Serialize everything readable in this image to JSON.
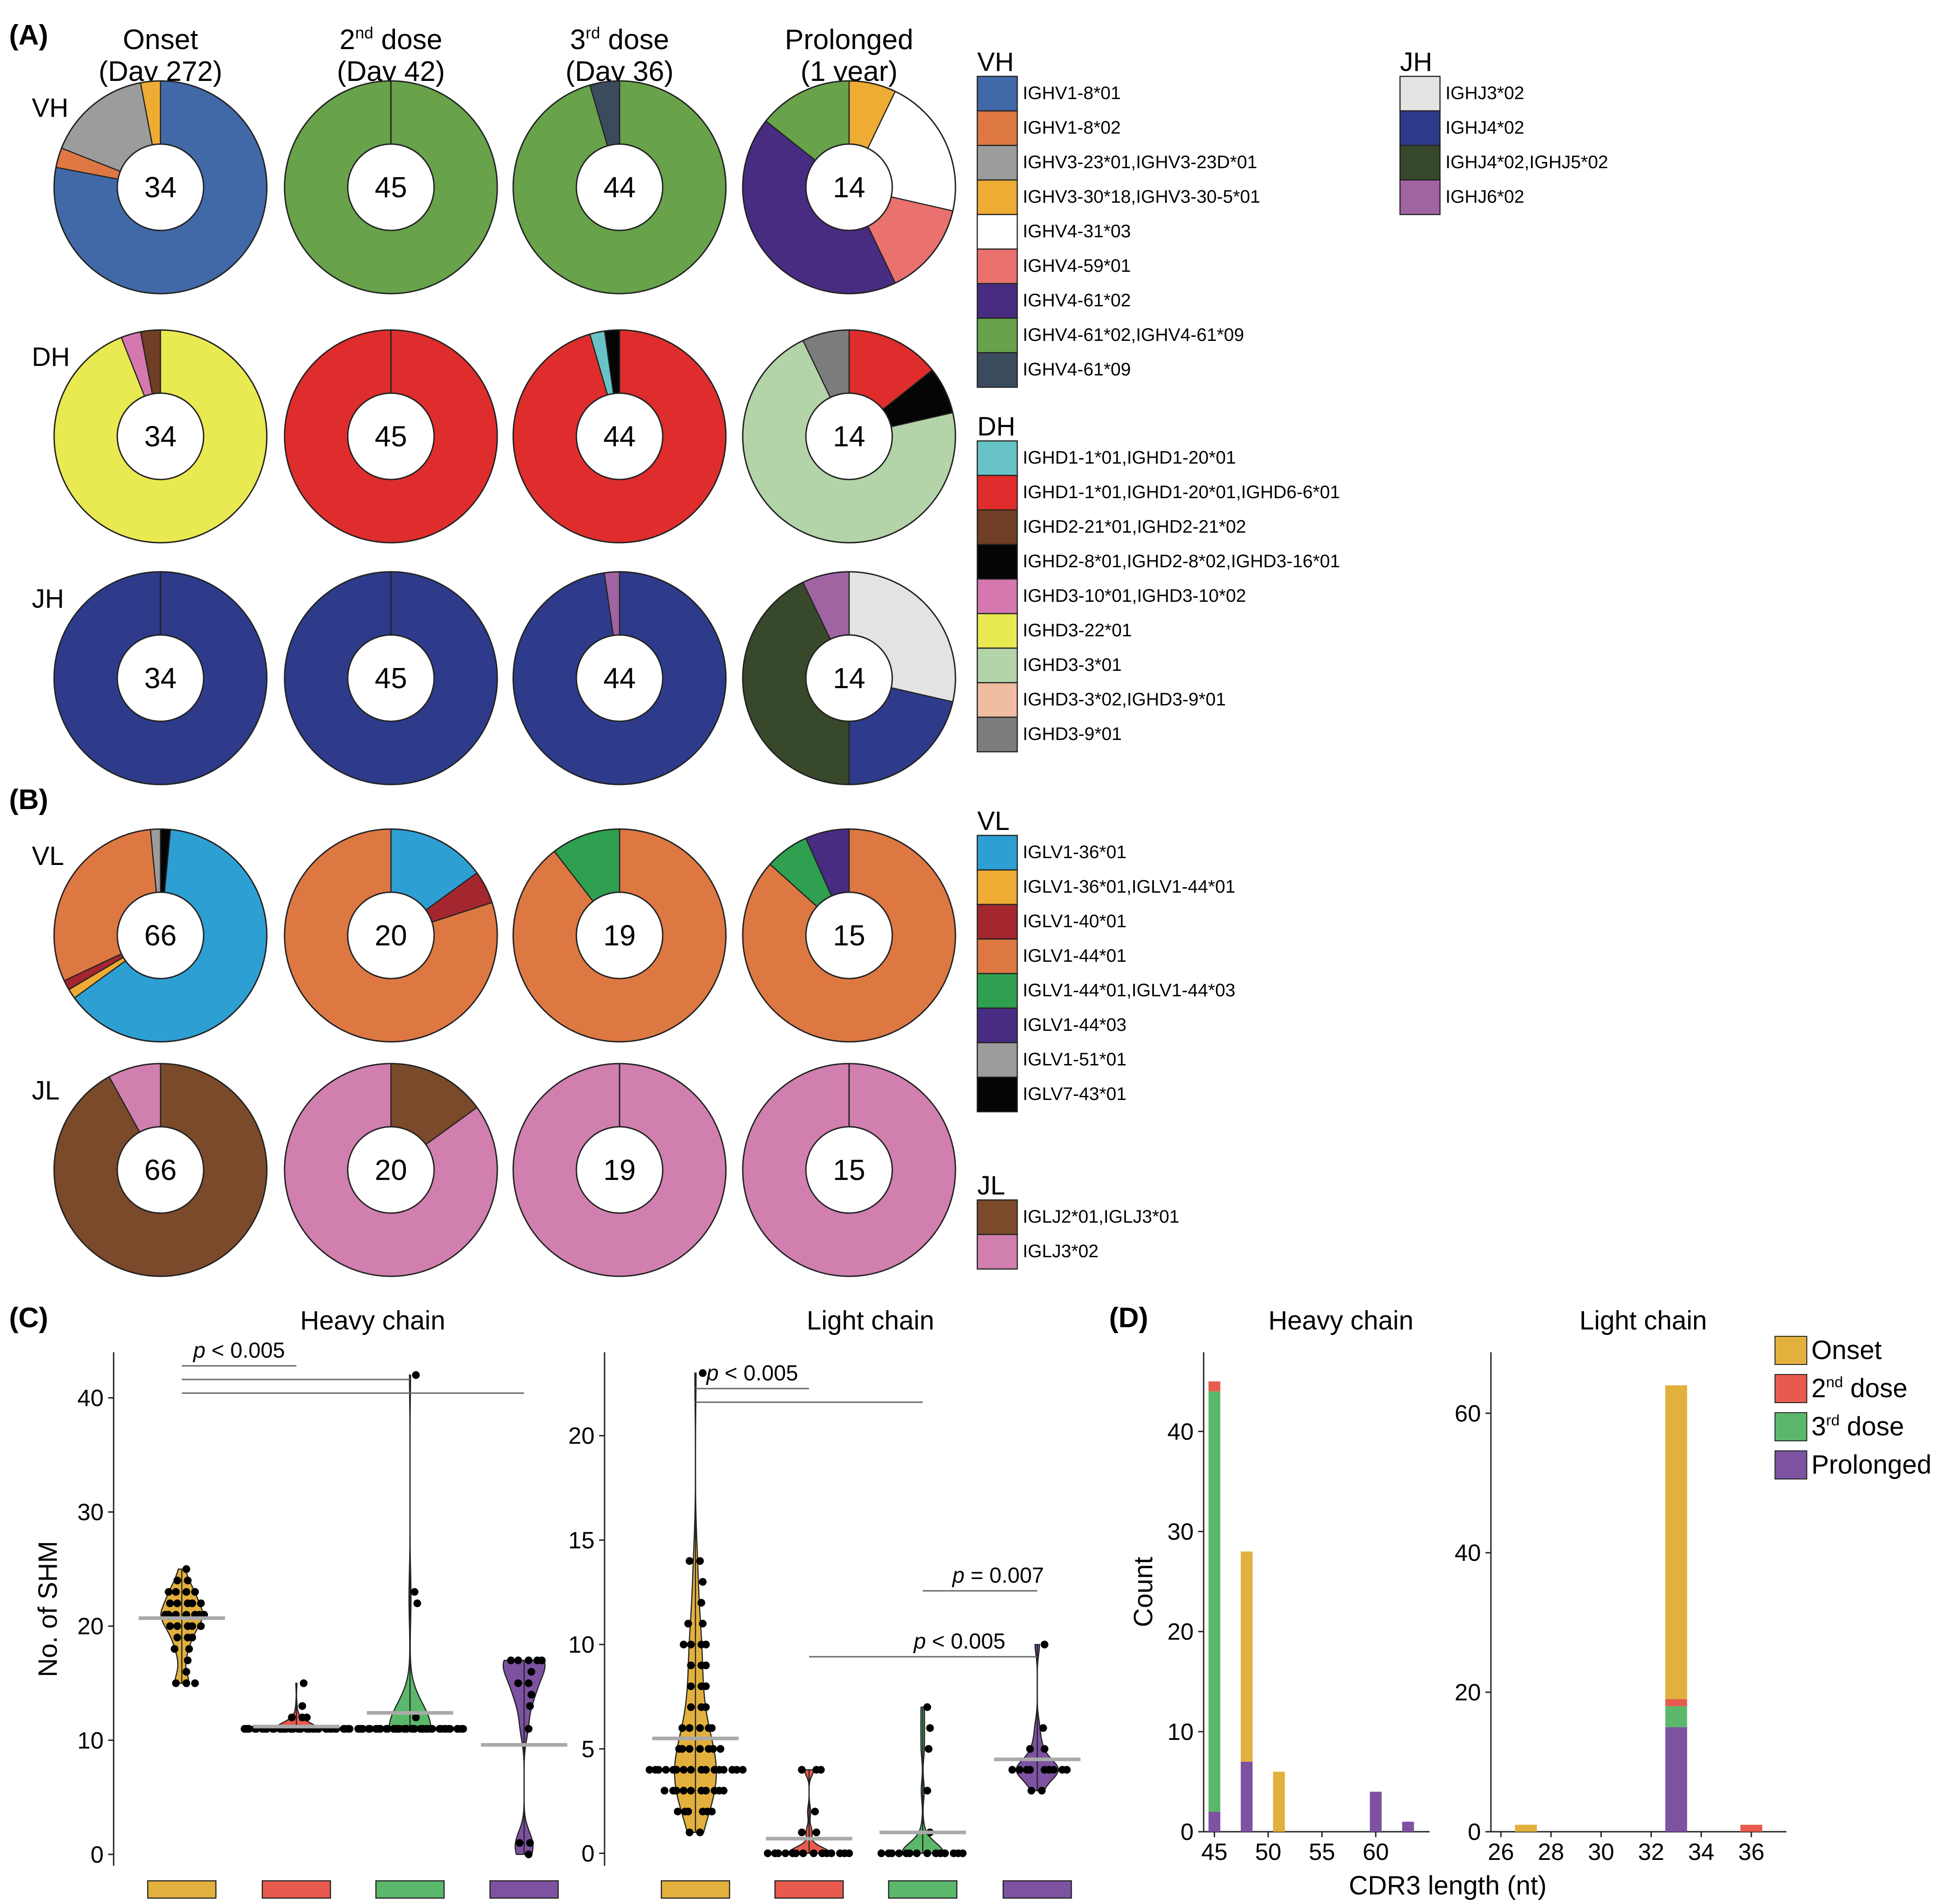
{
  "panels": {
    "a": "(A)",
    "b": "(B)",
    "c": "(C)",
    "d": "(D)"
  },
  "columns": [
    {
      "line1": "Onset",
      "line2": "(Day 272)"
    },
    {
      "line1": "2",
      "sup": "nd",
      "line1b": " dose",
      "line2": "(Day 42)"
    },
    {
      "line1": "3",
      "sup": "rd",
      "line1b": " dose",
      "line2": "(Day 36)"
    },
    {
      "line1": "Prolonged",
      "line2": "(1 year)"
    }
  ],
  "colors": {
    "IGHV1-8*01": "#4169a8",
    "IGHV1-8*02": "#dd7843",
    "IGHV3-23*01,IGHV3-23D*01": "#9c9c9c",
    "IGHV3-30*18,IGHV3-30-5*01": "#eeac34",
    "IGHV4-31*03": "#ffffff",
    "IGHV4-59*01": "#e9716e",
    "IGHV4-61*02": "#472c82",
    "IGHV4-61*02,IGHV4-61*09": "#68a24a",
    "IGHV4-61*09": "#3b4b5e",
    "IGHD1-1*01,IGHD1-20*01": "#68c3c6",
    "IGHD1-1*01,IGHD1-20*01,IGHD6-6*01": "#de2d2c",
    "IGHD2-21*01,IGHD2-21*02": "#6f3e24",
    "IGHD2-8*01,IGHD2-8*02,IGHD3-16*01": "#050505",
    "IGHD3-10*01,IGHD3-10*02": "#d678b0",
    "IGHD3-22*01": "#e9e951",
    "IGHD3-3*01": "#b3d3a9",
    "IGHD3-3*02,IGHD3-9*01": "#efbda2",
    "IGHD3-9*01": "#7c7c7c",
    "IGHJ3*02": "#e3e3e1",
    "IGHJ4*02": "#2e3b8a",
    "IGHJ4*02,IGHJ5*02": "#38482b",
    "IGHJ6*02": "#a064a2",
    "IGLV1-36*01": "#2e9fd2",
    "IGLV1-36*01,IGLV1-44*01": "#eeac34",
    "IGLV1-40*01": "#a4262e",
    "IGLV1-44*01": "#dd7843",
    "IGLV1-44*01,IGLV1-44*03": "#2ea04f",
    "IGLV1-44*03": "#472c82",
    "IGLV1-51*01": "#9c9c9c",
    "IGLV7-43*01": "#050505",
    "IGLJ2*01,IGLJ3*01": "#7a4a2a",
    "IGLJ3*02": "#d07fae",
    "Onset": "#e2b03c",
    "2nd dose": "#e85a4e",
    "3rd dose": "#5bb86a",
    "Prolonged": "#7d52a1"
  },
  "donut_rows": [
    {
      "label": "VH",
      "donuts": [
        {
          "n": "34",
          "slices": [
            [
              "IGHV1-8*01",
              0.78
            ],
            [
              "IGHV1-8*02",
              0.03
            ],
            [
              "IGHV3-23*01,IGHV3-23D*01",
              0.16
            ],
            [
              "IGHV3-30*18,IGHV3-30-5*01",
              0.03
            ]
          ]
        },
        {
          "n": "45",
          "slices": [
            [
              "IGHV4-61*02,IGHV4-61*09",
              1.0
            ]
          ]
        },
        {
          "n": "44",
          "slices": [
            [
              "IGHV4-61*02,IGHV4-61*09",
              0.955
            ],
            [
              "IGHV4-61*09",
              0.045
            ]
          ]
        },
        {
          "n": "14",
          "slices": [
            [
              "IGHV3-30*18,IGHV3-30-5*01",
              0.0714
            ],
            [
              "IGHV4-31*03",
              0.2143
            ],
            [
              "IGHV4-59*01",
              0.1429
            ],
            [
              "IGHV4-61*02",
              0.4286
            ],
            [
              "IGHV4-61*02,IGHV4-61*09",
              0.1429
            ]
          ]
        }
      ]
    },
    {
      "label": "DH",
      "donuts": [
        {
          "n": "34",
          "slices": [
            [
              "IGHD3-22*01",
              0.94
            ],
            [
              "IGHD3-10*01,IGHD3-10*02",
              0.03
            ],
            [
              "IGHD2-21*01,IGHD2-21*02",
              0.03
            ]
          ]
        },
        {
          "n": "45",
          "slices": [
            [
              "IGHD1-1*01,IGHD1-20*01,IGHD6-6*01",
              1.0
            ]
          ]
        },
        {
          "n": "44",
          "slices": [
            [
              "IGHD1-1*01,IGHD1-20*01,IGHD6-6*01",
              0.955
            ],
            [
              "IGHD1-1*01,IGHD1-20*01",
              0.0225
            ],
            [
              "IGHD2-8*01,IGHD2-8*02,IGHD3-16*01",
              0.0225
            ]
          ]
        },
        {
          "n": "14",
          "slices": [
            [
              "IGHD1-1*01,IGHD1-20*01,IGHD6-6*01",
              0.1429
            ],
            [
              "IGHD2-8*01,IGHD2-8*02,IGHD3-16*01",
              0.0714
            ],
            [
              "IGHD3-3*01",
              0.7143
            ],
            [
              "IGHD3-9*01",
              0.0714
            ]
          ]
        }
      ]
    },
    {
      "label": "JH",
      "donuts": [
        {
          "n": "34",
          "slices": [
            [
              "IGHJ4*02",
              1.0
            ]
          ]
        },
        {
          "n": "45",
          "slices": [
            [
              "IGHJ4*02",
              1.0
            ]
          ]
        },
        {
          "n": "44",
          "slices": [
            [
              "IGHJ4*02",
              0.977
            ],
            [
              "IGHJ6*02",
              0.023
            ]
          ]
        },
        {
          "n": "14",
          "slices": [
            [
              "IGHJ3*02",
              0.2857
            ],
            [
              "IGHJ4*02",
              0.2143
            ],
            [
              "IGHJ4*02,IGHJ5*02",
              0.4286
            ],
            [
              "IGHJ6*02",
              0.0714
            ]
          ]
        }
      ]
    },
    {
      "label": "VL",
      "donuts": [
        {
          "n": "66",
          "slices": [
            [
              "IGLV7-43*01",
              0.015
            ],
            [
              "IGLV1-36*01",
              0.635
            ],
            [
              "IGLV1-36*01,IGLV1-44*01",
              0.015
            ],
            [
              "IGLV1-40*01",
              0.015
            ],
            [
              "IGLV1-44*01",
              0.305
            ],
            [
              "IGLV1-51*01",
              0.015
            ]
          ]
        },
        {
          "n": "20",
          "slices": [
            [
              "IGLV1-36*01",
              0.15
            ],
            [
              "IGLV1-40*01",
              0.05
            ],
            [
              "IGLV1-44*01",
              0.8
            ]
          ]
        },
        {
          "n": "19",
          "slices": [
            [
              "IGLV1-44*01",
              0.895
            ],
            [
              "IGLV1-44*01,IGLV1-44*03",
              0.105
            ]
          ]
        },
        {
          "n": "15",
          "slices": [
            [
              "IGLV1-44*01",
              0.8667
            ],
            [
              "IGLV1-44*01,IGLV1-44*03",
              0.0667
            ],
            [
              "IGLV1-44*03",
              0.0667
            ]
          ]
        }
      ]
    },
    {
      "label": "JL",
      "donuts": [
        {
          "n": "66",
          "slices": [
            [
              "IGLJ2*01,IGLJ3*01",
              0.92
            ],
            [
              "IGLJ3*02",
              0.08
            ]
          ]
        },
        {
          "n": "20",
          "slices": [
            [
              "IGLJ2*01,IGLJ3*01",
              0.15
            ],
            [
              "IGLJ3*02",
              0.85
            ]
          ]
        },
        {
          "n": "19",
          "slices": [
            [
              "IGLJ3*02",
              1.0
            ]
          ]
        },
        {
          "n": "15",
          "slices": [
            [
              "IGLJ3*02",
              1.0
            ]
          ]
        }
      ]
    }
  ],
  "legends": [
    {
      "title": "VH",
      "items": [
        "IGHV1-8*01",
        "IGHV1-8*02",
        "IGHV3-23*01,IGHV3-23D*01",
        "IGHV3-30*18,IGHV3-30-5*01",
        "IGHV4-31*03",
        "IGHV4-59*01",
        "IGHV4-61*02",
        "IGHV4-61*02,IGHV4-61*09",
        "IGHV4-61*09"
      ]
    },
    {
      "title": "JH",
      "items": [
        "IGHJ3*02",
        "IGHJ4*02",
        "IGHJ4*02,IGHJ5*02",
        "IGHJ6*02"
      ]
    },
    {
      "title": "DH",
      "items": [
        "IGHD1-1*01,IGHD1-20*01",
        "IGHD1-1*01,IGHD1-20*01,IGHD6-6*01",
        "IGHD2-21*01,IGHD2-21*02",
        "IGHD2-8*01,IGHD2-8*02,IGHD3-16*01",
        "IGHD3-10*01,IGHD3-10*02",
        "IGHD3-22*01",
        "IGHD3-3*01",
        "IGHD3-3*02,IGHD3-9*01",
        "IGHD3-9*01"
      ]
    },
    {
      "title": "VL",
      "items": [
        "IGLV1-36*01",
        "IGLV1-36*01,IGLV1-44*01",
        "IGLV1-40*01",
        "IGLV1-44*01",
        "IGLV1-44*01,IGLV1-44*03",
        "IGLV1-44*03",
        "IGLV1-51*01",
        "IGLV7-43*01"
      ]
    },
    {
      "title": "JL",
      "items": [
        "IGLJ2*01,IGLJ3*01",
        "IGLJ3*02"
      ]
    }
  ],
  "chart_data": [
    {
      "type": "violin",
      "title": "Heavy chain",
      "ylabel": "No. of SHM",
      "ylim": [
        -1,
        44
      ],
      "yticks": [
        0,
        10,
        20,
        30,
        40
      ],
      "groups": [
        "Onset",
        "2nd dose",
        "3rd dose",
        "Prolonged"
      ],
      "means": [
        20.7,
        11.2,
        12.4,
        9.6
      ],
      "points": [
        [
          15,
          15,
          15,
          16,
          17,
          18,
          18,
          19,
          19,
          19,
          20,
          20,
          20,
          20,
          20,
          21,
          21,
          21,
          21,
          21,
          21,
          21,
          22,
          22,
          22,
          22,
          22,
          23,
          23,
          23,
          23,
          24,
          24,
          25
        ],
        [
          11,
          11,
          11,
          11,
          11,
          11,
          11,
          11,
          11,
          11,
          11,
          11,
          11,
          11,
          11,
          11,
          11,
          11,
          11,
          11,
          11,
          11,
          11,
          11,
          11,
          11,
          11,
          11,
          11,
          11,
          11,
          11,
          11,
          11,
          11,
          11,
          11,
          11,
          11,
          11,
          12,
          12,
          12,
          13,
          15
        ],
        [
          11,
          11,
          11,
          11,
          11,
          11,
          11,
          11,
          11,
          11,
          11,
          11,
          11,
          11,
          11,
          11,
          11,
          11,
          11,
          11,
          11,
          11,
          11,
          11,
          11,
          11,
          11,
          11,
          11,
          11,
          11,
          11,
          11,
          11,
          11,
          11,
          11,
          11,
          11,
          11,
          12,
          22,
          23,
          42
        ],
        [
          0,
          1,
          1,
          11,
          13,
          14,
          15,
          15,
          16,
          17,
          17,
          17,
          17,
          17
        ]
      ],
      "comparisons": [
        {
          "from": 0,
          "to": 1,
          "label": "p < 0.005"
        },
        {
          "from": 0,
          "to": 2,
          "label": ""
        },
        {
          "from": 0,
          "to": 3,
          "label": ""
        }
      ]
    },
    {
      "type": "violin",
      "title": "Light chain",
      "ylim": [
        -0.6,
        24
      ],
      "yticks": [
        0,
        5,
        10,
        15,
        20
      ],
      "groups": [
        "Onset",
        "2nd dose",
        "3rd dose",
        "Prolonged"
      ],
      "means": [
        5.5,
        0.7,
        1.0,
        4.5
      ],
      "points": [
        [
          1,
          1,
          2,
          2,
          2,
          2,
          2,
          3,
          3,
          3,
          3,
          3,
          3,
          3,
          3,
          3,
          4,
          4,
          4,
          4,
          4,
          4,
          4,
          4,
          4,
          4,
          4,
          4,
          4,
          4,
          5,
          5,
          5,
          5,
          5,
          5,
          6,
          6,
          6,
          6,
          7,
          7,
          7,
          8,
          8,
          8,
          9,
          9,
          9,
          10,
          10,
          10,
          10,
          11,
          11,
          12,
          13,
          14,
          14,
          23,
          3,
          4,
          5,
          6,
          2,
          4
        ],
        [
          0,
          0,
          0,
          0,
          0,
          0,
          0,
          0,
          0,
          0,
          0,
          0,
          0,
          0,
          1,
          1,
          2,
          4,
          4,
          4
        ],
        [
          0,
          0,
          0,
          0,
          0,
          0,
          0,
          0,
          0,
          0,
          0,
          0,
          0,
          0,
          1,
          3,
          5,
          6,
          7
        ],
        [
          3,
          3,
          4,
          4,
          4,
          4,
          4,
          4,
          4,
          4,
          4,
          5,
          5,
          6,
          10
        ]
      ],
      "comparisons": [
        {
          "from": 0,
          "to": 1,
          "label": "p < 0.005"
        },
        {
          "from": 0,
          "to": 2,
          "label": ""
        },
        {
          "from": 1,
          "to": 3,
          "label": "p < 0.005"
        },
        {
          "from": 2,
          "to": 3,
          "label": "p = 0.007"
        }
      ]
    },
    {
      "type": "bar",
      "stacked": true,
      "title": "Heavy chain",
      "xlabel": "CDR3 length (nt)",
      "ylabel": "Count",
      "xlim": [
        44,
        65
      ],
      "xticks": [
        45,
        50,
        55,
        60
      ],
      "ylim": [
        0,
        46
      ],
      "yticks": [
        0,
        10,
        20,
        30,
        40
      ],
      "bars": [
        {
          "x": 45,
          "stack": [
            [
              "Prolonged",
              2
            ],
            [
              "3rd dose",
              42
            ],
            [
              "2nd dose",
              1
            ]
          ]
        },
        {
          "x": 48,
          "stack": [
            [
              "Prolonged",
              7
            ],
            [
              "Onset",
              21
            ]
          ]
        },
        {
          "x": 51,
          "stack": [
            [
              "Onset",
              6
            ]
          ]
        },
        {
          "x": 60,
          "stack": [
            [
              "Prolonged",
              4
            ]
          ]
        },
        {
          "x": 63,
          "stack": [
            [
              "Prolonged",
              1
            ]
          ]
        }
      ]
    },
    {
      "type": "bar",
      "stacked": true,
      "title": "Light chain",
      "xlabel": "",
      "xlim": [
        25.6,
        37.4
      ],
      "xticks": [
        26,
        28,
        30,
        32,
        34,
        36
      ],
      "ylim": [
        0,
        66
      ],
      "yticks": [
        0,
        20,
        40,
        60
      ],
      "bars": [
        {
          "x": 27,
          "stack": [
            [
              "Onset",
              1
            ]
          ]
        },
        {
          "x": 33,
          "stack": [
            [
              "Prolonged",
              15
            ],
            [
              "3rd dose",
              3
            ],
            [
              "2nd dose",
              1
            ],
            [
              "Onset",
              45
            ]
          ]
        },
        {
          "x": 36,
          "stack": [
            [
              "2nd dose",
              1
            ]
          ]
        }
      ]
    }
  ],
  "bar_legend": {
    "items": [
      {
        "key": "Onset",
        "label": "Onset"
      },
      {
        "key": "2nd dose",
        "base": "2",
        "sup": "nd",
        "rest": " dose"
      },
      {
        "key": "3rd dose",
        "base": "3",
        "sup": "rd",
        "rest": " dose"
      },
      {
        "key": "Prolonged",
        "label": "Prolonged"
      }
    ]
  }
}
